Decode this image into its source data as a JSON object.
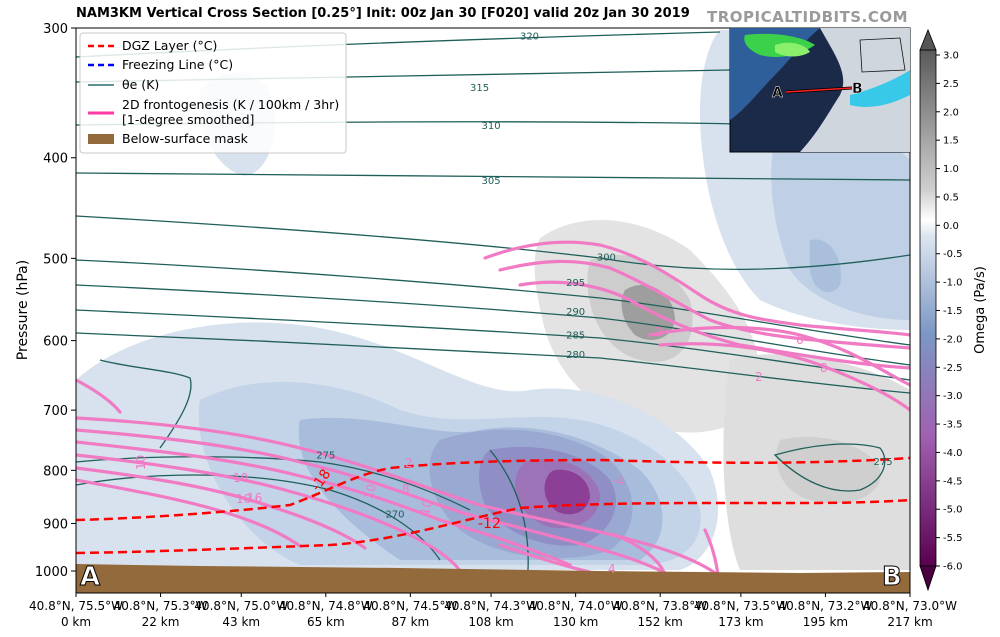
{
  "header": {
    "title": "NAM3KM Vertical Cross Section [0.25°] Init: 00z Jan 30 [F020] valid 20z Jan 30 2019",
    "brand": "TROPICALTIDBITS.COM"
  },
  "chart_data": {
    "type": "cross-section",
    "ylabel": "Pressure (hPa)",
    "y_axis": {
      "scale": "log",
      "ylim": [
        1050,
        300
      ],
      "ticks": [
        300,
        400,
        500,
        600,
        700,
        800,
        900,
        1000
      ]
    },
    "x_ticks": [
      {
        "coord": "40.8°N, 75.5°W",
        "dist": "0 km",
        "km": 0
      },
      {
        "coord": "40.8°N, 75.3°W",
        "dist": "22 km",
        "km": 22
      },
      {
        "coord": "40.8°N, 75.0°W",
        "dist": "43 km",
        "km": 43
      },
      {
        "coord": "40.8°N, 74.8°W",
        "dist": "65 km",
        "km": 65
      },
      {
        "coord": "40.8°N, 74.5°W",
        "dist": "87 km",
        "km": 87
      },
      {
        "coord": "40.8°N, 74.3°W",
        "dist": "108 km",
        "km": 108
      },
      {
        "coord": "40.8°N, 74.0°W",
        "dist": "130 km",
        "km": 130
      },
      {
        "coord": "40.8°N, 73.8°W",
        "dist": "152 km",
        "km": 152
      },
      {
        "coord": "40.8°N, 73.5°W",
        "dist": "173 km",
        "km": 173
      },
      {
        "coord": "40.8°N, 73.2°W",
        "dist": "195 km",
        "km": 195
      },
      {
        "coord": "40.8°N, 73.0°W",
        "dist": "217 km",
        "km": 217
      }
    ],
    "endpoints": {
      "left": "A",
      "right": "B"
    },
    "legend": {
      "position": "top-left",
      "items": [
        {
          "label": "DGZ Layer (°C)",
          "color": "#ff0000",
          "style": "dashed"
        },
        {
          "label": "Freezing Line (°C)",
          "color": "#0000ff",
          "style": "dashed"
        },
        {
          "label": "θe (K)",
          "color": "#2f6f6b",
          "style": "solid"
        },
        {
          "label": "2D frontogenesis (K / 100km / 3hr)",
          "label2": "[1-degree smoothed]",
          "color": "#ff3aa6",
          "style": "solid"
        },
        {
          "label": "Below-surface mask",
          "color": "#936a3c",
          "style": "patch"
        }
      ]
    },
    "colorbar": {
      "label": "Omega (Pa/s)",
      "ticks": [
        "3.0",
        "2.5",
        "2.0",
        "1.5",
        "1.0",
        "0.5",
        "0.0",
        "-0.5",
        "-1.0",
        "-1.5",
        "-2.0",
        "-2.5",
        "-3.0",
        "-3.5",
        "-4.0",
        "-4.5",
        "-5.0",
        "-5.5",
        "-6.0"
      ]
    },
    "theta_e_levels": [
      {
        "label": "320",
        "p": 305,
        "x_km": 118
      },
      {
        "label": "315",
        "p": 342,
        "x_km": 105
      },
      {
        "label": "310",
        "p": 372,
        "x_km": 108
      },
      {
        "label": "305",
        "p": 420,
        "x_km": 108
      },
      {
        "label": "300",
        "p": 498,
        "x_km": 138
      },
      {
        "label": "295",
        "p": 527,
        "x_km": 130
      },
      {
        "label": "290",
        "p": 562,
        "x_km": 130
      },
      {
        "label": "285",
        "p": 592,
        "x_km": 130
      },
      {
        "label": "280",
        "p": 618,
        "x_km": 130
      },
      {
        "label": "275",
        "p": 772,
        "x_km": 65
      },
      {
        "label": "270",
        "p": 880,
        "x_km": 83
      },
      {
        "label": "275",
        "p": 784,
        "x_km": 210
      }
    ],
    "frontogenesis_labels": [
      "10",
      "10",
      "10",
      "8",
      "2",
      "10",
      "16",
      "10",
      "4",
      "2",
      "6",
      "8",
      "2",
      "-4"
    ],
    "dgz_labels": [
      "-18",
      "-12"
    ]
  }
}
